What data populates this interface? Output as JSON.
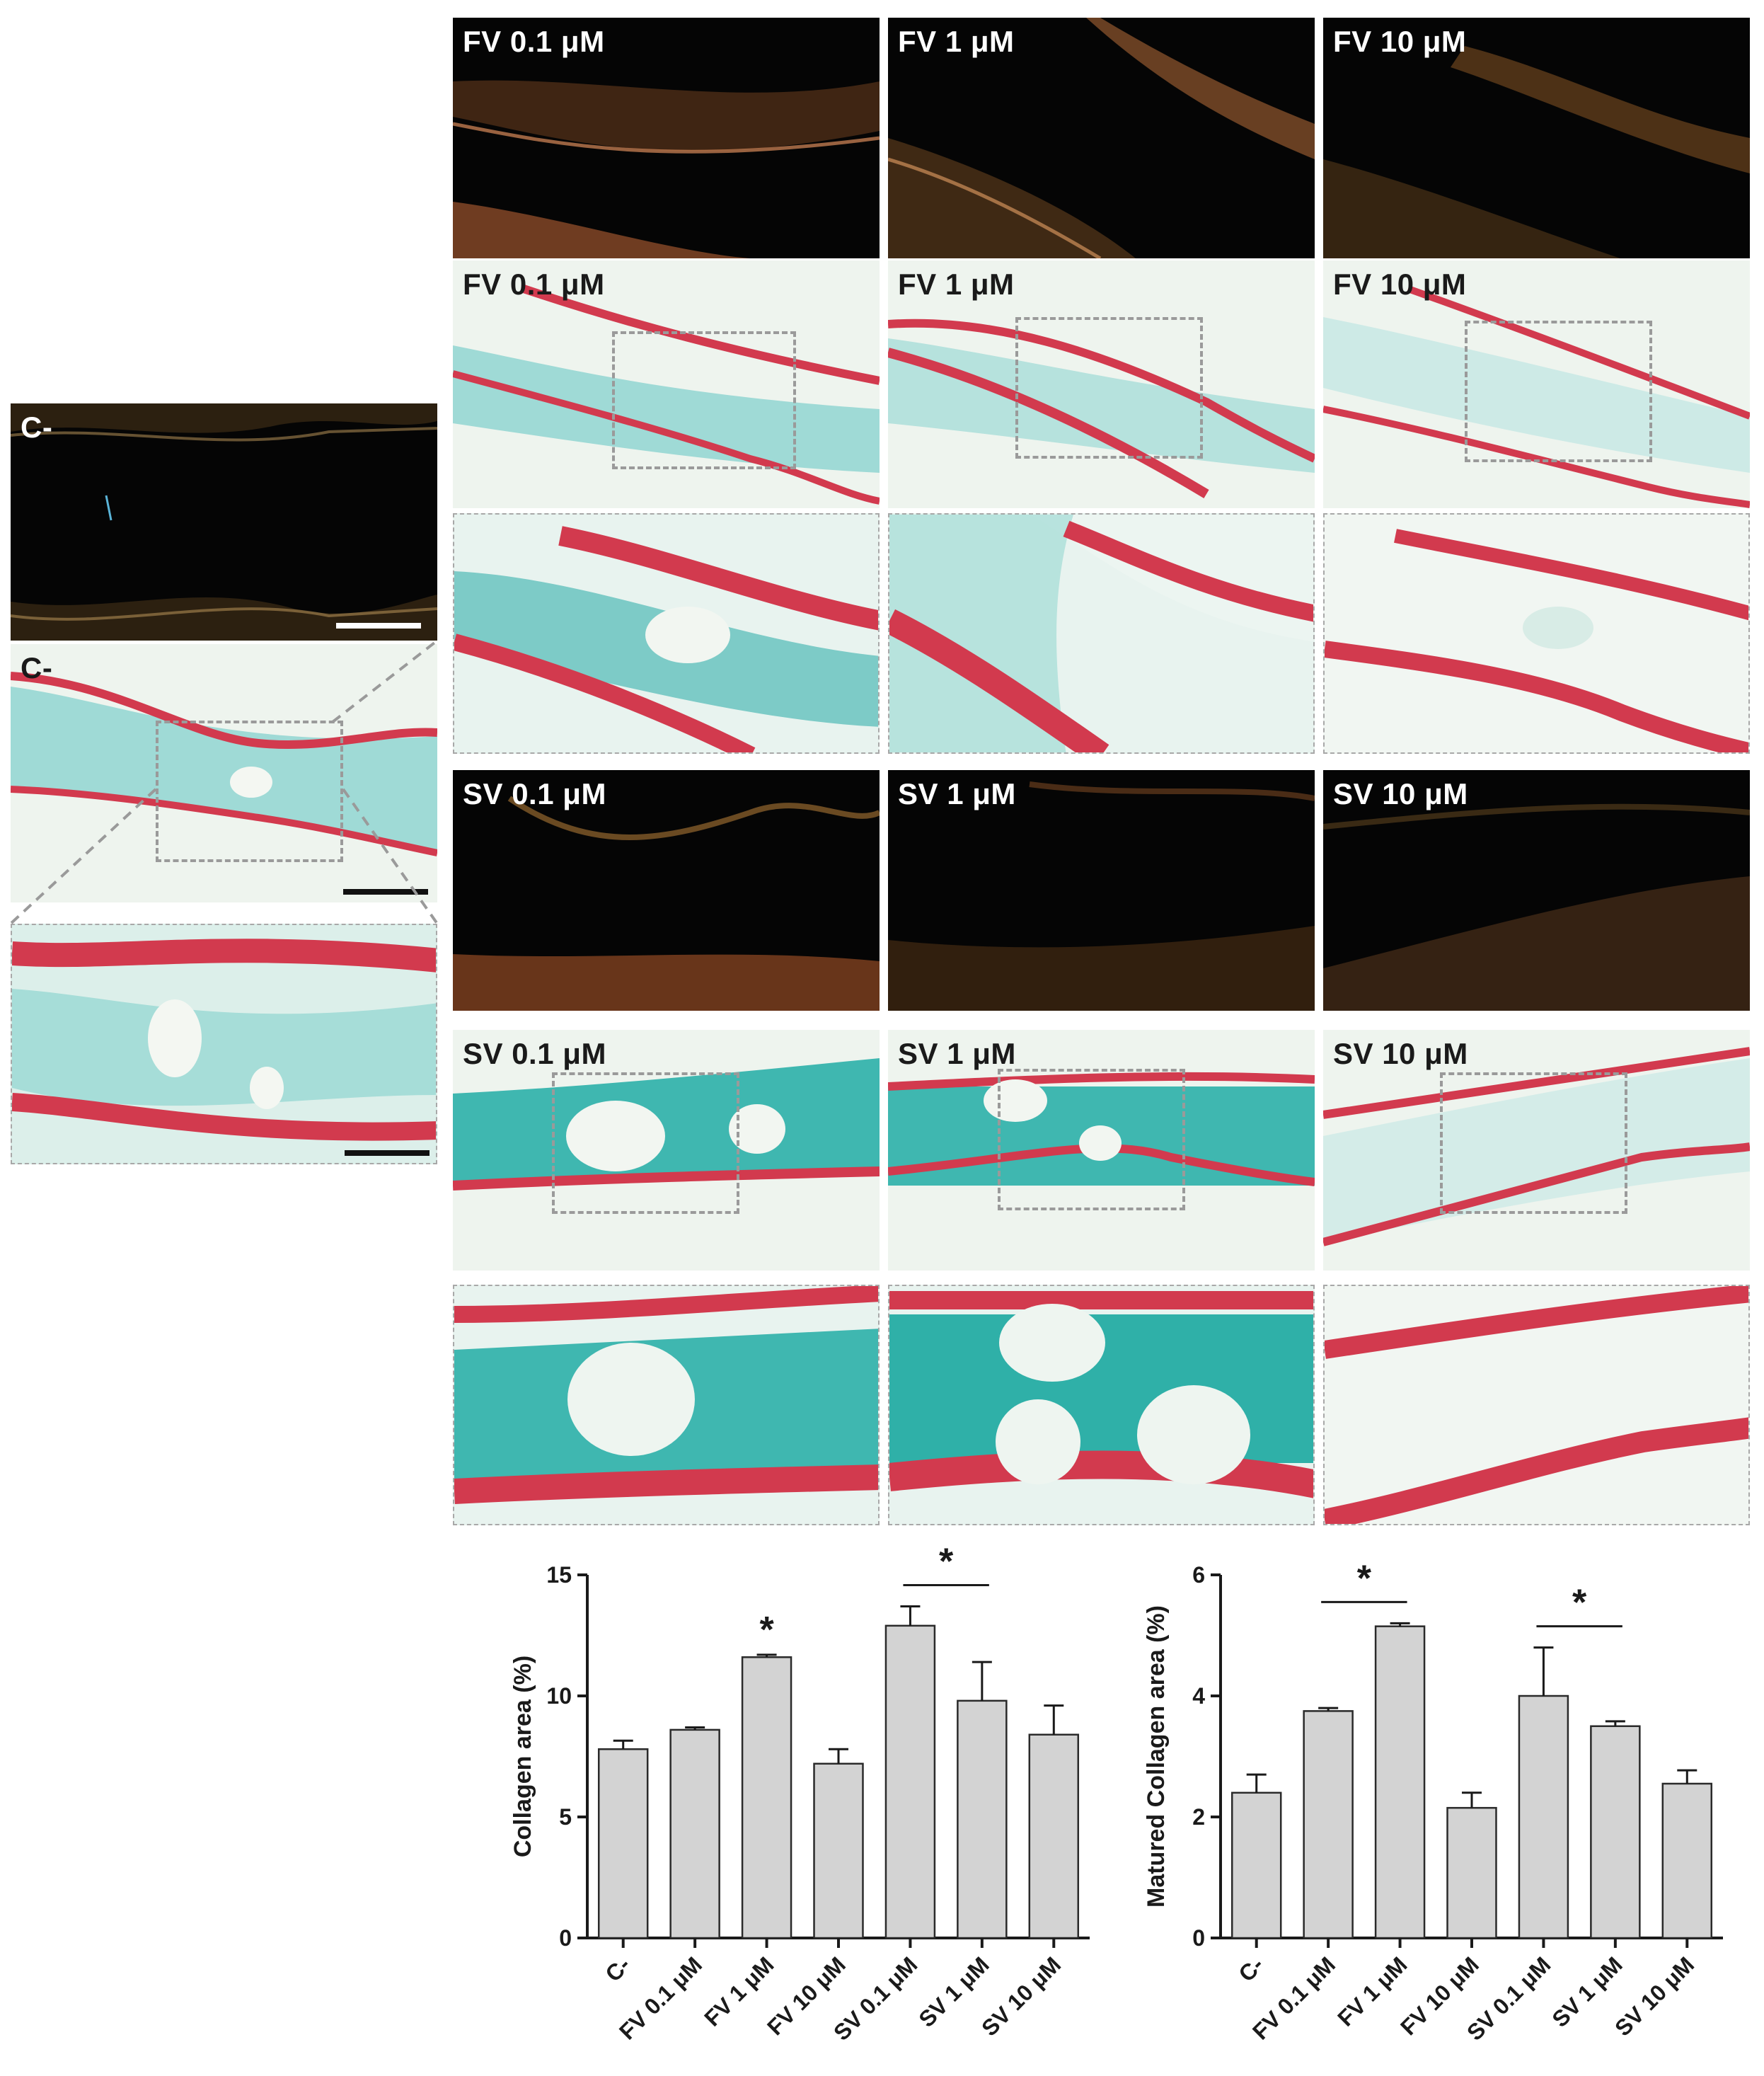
{
  "panels": {
    "control": {
      "dark_label": "C-",
      "bright_label": "C-"
    },
    "fv": [
      {
        "dark_label": "FV 0.1 μM",
        "bright_label": "FV 0.1 μM"
      },
      {
        "dark_label": "FV 1 μM",
        "bright_label": "FV 1 μM"
      },
      {
        "dark_label": "FV 10 μM",
        "bright_label": "FV 10 μM"
      }
    ],
    "sv": [
      {
        "dark_label": "SV 0.1 μM",
        "bright_label": "SV 0.1 μM"
      },
      {
        "dark_label": "SV 1 μM",
        "bright_label": "SV 1 μM"
      },
      {
        "dark_label": "SV 10 μM",
        "bright_label": "SV 10 μM"
      }
    ]
  },
  "colors": {
    "bar_fill": "#d3d3d3",
    "collagen_red": "#d23a4e",
    "cartilage_cyan": "#3fb7b0",
    "background_tissue": "#eef4ee",
    "polarized_bg": "#050505"
  },
  "chart_data": [
    {
      "type": "bar",
      "categories": [
        "C-",
        "FV 0.1 μM",
        "FV 1 μM",
        "FV 10 μM",
        "SV 0.1 μM",
        "SV 1 μM",
        "SV 10 μM"
      ],
      "values": [
        7.8,
        8.6,
        11.6,
        7.2,
        12.9,
        9.8,
        8.4
      ],
      "errors": [
        0.35,
        0.1,
        0.1,
        0.6,
        0.8,
        1.6,
        1.2
      ],
      "ylabel": "Collagen area (%)",
      "ylim": [
        0,
        15
      ],
      "yticks": [
        "0",
        "5",
        "10",
        "15"
      ],
      "significance": {
        "single_star_index": 2,
        "bracket": [
          4,
          5
        ],
        "symbol": "*"
      }
    },
    {
      "type": "bar",
      "categories": [
        "C-",
        "FV 0.1 μM",
        "FV 1 μM",
        "FV 10 μM",
        "SV 0.1 μM",
        "SV 1 μM",
        "SV 10 μM"
      ],
      "values": [
        2.4,
        3.75,
        5.15,
        2.15,
        4.0,
        3.5,
        2.55
      ],
      "errors": [
        0.3,
        0.05,
        0.05,
        0.25,
        0.8,
        0.08,
        0.22
      ],
      "ylabel": "Matured Collagen area (%)",
      "ylim": [
        0,
        6
      ],
      "yticks": [
        "0",
        "2",
        "4",
        "6"
      ],
      "significance": {
        "brackets": [
          [
            1,
            2
          ],
          [
            4,
            5
          ]
        ],
        "symbol": "*"
      }
    }
  ]
}
